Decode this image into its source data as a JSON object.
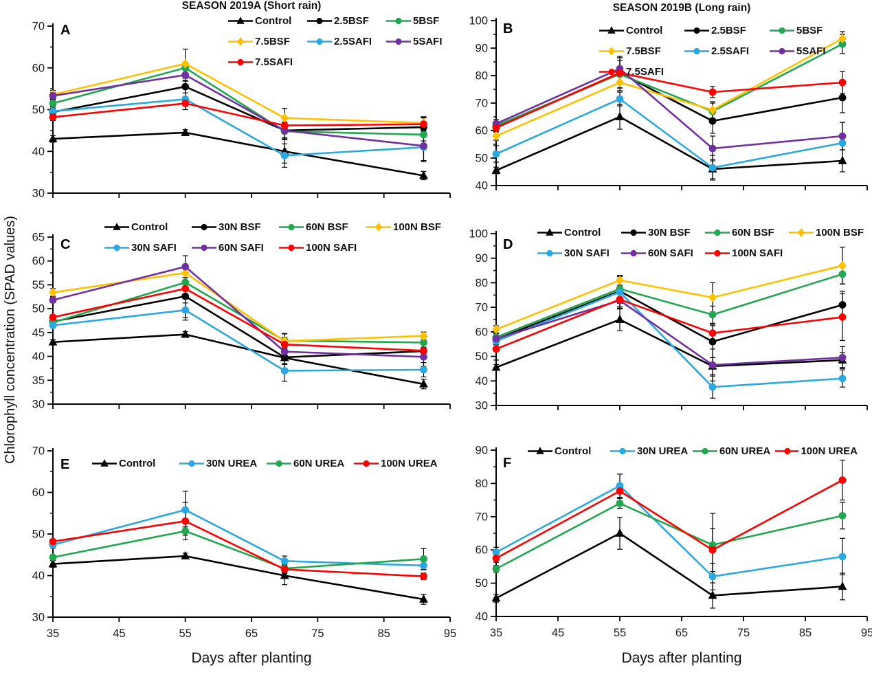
{
  "figure": {
    "y_axis_label": "Chlorophyll concentration (SPAD values)",
    "x_axis_label": "Days after planting",
    "col_titles": [
      "SEASON 2019A (Short rain)",
      "SEASON 2019B (Long rain)"
    ]
  },
  "palette": {
    "black": "#000000",
    "green": "#22A64F",
    "gold": "#FFC000",
    "cyan": "#2BA8E0",
    "purple": "#7030A0",
    "red": "#FE0000"
  },
  "chart_data": [
    {
      "panel": "A",
      "type": "line",
      "season_title": "SEASON 2019A (Short rain)",
      "x": [
        35,
        55,
        70,
        91
      ],
      "xticks": [
        35,
        45,
        55,
        65,
        75,
        85,
        95
      ],
      "yticks": [
        30,
        40,
        50,
        60,
        70
      ],
      "xlim": [
        35,
        95
      ],
      "ylim": [
        30,
        70
      ],
      "xlabel": "Days after planting",
      "ylabel": "Chlorophyll concentration (SPAD values)",
      "series": [
        {
          "label": "Control",
          "color": "black",
          "marker": "triangle",
          "values": [
            43.0,
            44.5,
            40.0,
            34.2
          ],
          "err": [
            0.8,
            0.7,
            2.8,
            1.0
          ]
        },
        {
          "label": "2.5BSF",
          "color": "black",
          "marker": "circle",
          "values": [
            49.4,
            55.5,
            45.0,
            45.8
          ],
          "err": [
            0.8,
            1.5,
            2.0,
            2.3
          ]
        },
        {
          "label": "5BSF",
          "color": "green",
          "marker": "circle",
          "values": [
            51.5,
            60.0,
            44.8,
            44.0
          ],
          "err": [
            0.8,
            1.2,
            1.5,
            1.5
          ]
        },
        {
          "label": "7.5BSF",
          "color": "gold",
          "marker": "diamond",
          "values": [
            53.6,
            61.0,
            48.0,
            46.8
          ],
          "err": [
            1.0,
            3.5,
            2.3,
            1.5
          ]
        },
        {
          "label": "2.5SAFI",
          "color": "cyan",
          "marker": "circle",
          "values": [
            49.6,
            52.5,
            39.0,
            41.0
          ],
          "err": [
            0.8,
            2.5,
            2.8,
            3.5
          ]
        },
        {
          "label": "5SAFI",
          "color": "purple",
          "marker": "circle",
          "values": [
            53.3,
            58.3,
            45.0,
            41.3
          ],
          "err": [
            0.8,
            1.5,
            2.0,
            3.5
          ]
        },
        {
          "label": "7.5SAFI",
          "color": "red",
          "marker": "circle",
          "values": [
            48.2,
            51.5,
            46.2,
            46.5
          ],
          "err": [
            0.8,
            1.5,
            1.5,
            1.5
          ]
        }
      ]
    },
    {
      "panel": "B",
      "type": "line",
      "season_title": "SEASON 2019B (Long rain)",
      "x": [
        35,
        55,
        70,
        91
      ],
      "xticks": [
        35,
        45,
        55,
        65,
        75,
        85,
        95
      ],
      "yticks": [
        40,
        50,
        60,
        70,
        80,
        90,
        100
      ],
      "xlim": [
        35,
        95
      ],
      "ylim": [
        40,
        100
      ],
      "xlabel": "Days after planting",
      "ylabel": "Chlorophyll concentration (SPAD values)",
      "series": [
        {
          "label": "Control",
          "color": "black",
          "marker": "triangle",
          "values": [
            45.5,
            65.0,
            46.0,
            49.0
          ],
          "err": [
            1.2,
            4.5,
            3.5,
            4.0
          ]
        },
        {
          "label": "2.5BSF",
          "color": "black",
          "marker": "circle",
          "values": [
            61.2,
            81.0,
            63.5,
            72.0
          ],
          "err": [
            1.5,
            5.5,
            4.5,
            5.5
          ]
        },
        {
          "label": "5BSF",
          "color": "green",
          "marker": "circle",
          "values": [
            61.8,
            80.5,
            67.0,
            91.5
          ],
          "err": [
            1.5,
            5.0,
            3.0,
            3.5
          ]
        },
        {
          "label": "7.5BSF",
          "color": "gold",
          "marker": "diamond",
          "values": [
            58.0,
            77.5,
            67.5,
            93.5
          ],
          "err": [
            1.5,
            3.0,
            3.0,
            2.5
          ]
        },
        {
          "label": "2.5SAFI",
          "color": "cyan",
          "marker": "circle",
          "values": [
            51.5,
            71.5,
            46.5,
            55.5
          ],
          "err": [
            3.0,
            2.5,
            4.5,
            7.5
          ]
        },
        {
          "label": "5SAFI",
          "color": "purple",
          "marker": "circle",
          "values": [
            62.5,
            82.5,
            53.5,
            58.0
          ],
          "err": [
            1.5,
            4.5,
            4.5,
            5.0
          ]
        },
        {
          "label": "7.5SAFI",
          "color": "red",
          "marker": "circle",
          "values": [
            61.0,
            81.0,
            74.0,
            77.5
          ],
          "err": [
            1.5,
            5.5,
            2.0,
            4.0
          ]
        }
      ]
    },
    {
      "panel": "C",
      "type": "line",
      "season_title": "SEASON 2019A (Short rain)",
      "x": [
        35,
        55,
        70,
        91
      ],
      "xticks": [
        35,
        45,
        55,
        65,
        75,
        85,
        95
      ],
      "yticks": [
        30,
        35,
        40,
        45,
        50,
        55,
        60,
        65
      ],
      "xlim": [
        35,
        95
      ],
      "ylim": [
        30,
        65
      ],
      "xlabel": "Days after planting",
      "ylabel": "Chlorophyll concentration (SPAD values)",
      "series": [
        {
          "label": "Control",
          "color": "black",
          "marker": "triangle",
          "values": [
            43.0,
            44.6,
            39.7,
            34.2
          ],
          "err": [
            0.5,
            0.6,
            1.2,
            1.0
          ]
        },
        {
          "label": "30N BSF",
          "color": "black",
          "marker": "circle",
          "values": [
            47.3,
            52.6,
            39.8,
            41.1
          ],
          "err": [
            0.5,
            5.0,
            1.5,
            1.5
          ]
        },
        {
          "label": "60N BSF",
          "color": "green",
          "marker": "circle",
          "values": [
            47.1,
            55.5,
            43.3,
            42.9
          ],
          "err": [
            0.5,
            1.0,
            1.5,
            1.0
          ]
        },
        {
          "label": "100N BSF",
          "color": "gold",
          "marker": "diamond",
          "values": [
            53.4,
            57.5,
            43.2,
            44.3
          ],
          "err": [
            0.8,
            1.0,
            1.5,
            0.8
          ]
        },
        {
          "label": "30N SAFI",
          "color": "cyan",
          "marker": "circle",
          "values": [
            46.5,
            49.7,
            37.0,
            37.2
          ],
          "err": [
            0.5,
            1.5,
            2.2,
            1.5
          ]
        },
        {
          "label": "60N SAFI",
          "color": "purple",
          "marker": "circle",
          "values": [
            51.8,
            58.8,
            41.0,
            39.9
          ],
          "err": [
            0.5,
            2.3,
            1.5,
            2.0
          ]
        },
        {
          "label": "100N SAFI",
          "color": "red",
          "marker": "circle",
          "values": [
            48.2,
            54.2,
            42.5,
            41.2
          ],
          "err": [
            0.5,
            1.5,
            1.5,
            1.5
          ]
        }
      ]
    },
    {
      "panel": "D",
      "type": "line",
      "season_title": "SEASON 2019B (Long rain)",
      "x": [
        35,
        55,
        70,
        91
      ],
      "xticks": [
        35,
        45,
        55,
        65,
        75,
        85,
        95
      ],
      "yticks": [
        30,
        40,
        50,
        60,
        70,
        80,
        90,
        100
      ],
      "xlim": [
        35,
        95
      ],
      "ylim": [
        30,
        100
      ],
      "xlabel": "Days after planting",
      "ylabel": "Chlorophyll concentration (SPAD values)",
      "series": [
        {
          "label": "Control",
          "color": "black",
          "marker": "triangle",
          "values": [
            45.5,
            65.0,
            46.0,
            48.5
          ],
          "err": [
            1.2,
            4.5,
            3.5,
            3.0
          ]
        },
        {
          "label": "30N BSF",
          "color": "black",
          "marker": "circle",
          "values": [
            57.0,
            76.6,
            56.0,
            71.0
          ],
          "err": [
            1.5,
            5.0,
            6.5,
            5.5
          ]
        },
        {
          "label": "60N BSF",
          "color": "green",
          "marker": "circle",
          "values": [
            57.8,
            77.5,
            67.0,
            83.5
          ],
          "err": [
            1.5,
            5.0,
            3.5,
            4.0
          ]
        },
        {
          "label": "100N BSF",
          "color": "gold",
          "marker": "diamond",
          "values": [
            61.0,
            81.0,
            74.0,
            87.0
          ],
          "err": [
            1.5,
            2.0,
            6.0,
            7.5
          ]
        },
        {
          "label": "30N SAFI",
          "color": "cyan",
          "marker": "circle",
          "values": [
            56.2,
            76.2,
            37.5,
            41.0
          ],
          "err": [
            1.5,
            6.5,
            4.5,
            3.5
          ]
        },
        {
          "label": "60N SAFI",
          "color": "purple",
          "marker": "circle",
          "values": [
            57.2,
            72.8,
            46.5,
            49.5
          ],
          "err": [
            1.5,
            3.5,
            6.5,
            4.5
          ]
        },
        {
          "label": "100N SAFI",
          "color": "red",
          "marker": "circle",
          "values": [
            53.0,
            73.2,
            59.5,
            66.0
          ],
          "err": [
            4.5,
            3.0,
            3.5,
            9.5
          ]
        }
      ]
    },
    {
      "panel": "E",
      "type": "line",
      "season_title": "SEASON 2019A (Short rain)",
      "x": [
        35,
        55,
        70,
        91
      ],
      "xticks": [
        35,
        45,
        55,
        65,
        75,
        85,
        95
      ],
      "yticks": [
        30,
        40,
        50,
        60,
        70
      ],
      "xlim": [
        35,
        95
      ],
      "ylim": [
        30,
        70
      ],
      "xlabel": "Days after planting",
      "ylabel": "Chlorophyll concentration (SPAD values)",
      "series": [
        {
          "label": "Control",
          "color": "black",
          "marker": "triangle",
          "values": [
            42.8,
            44.7,
            40.0,
            34.3
          ],
          "err": [
            0.8,
            0.7,
            2.2,
            1.2
          ]
        },
        {
          "label": "30N UREA",
          "color": "cyan",
          "marker": "circle",
          "values": [
            47.4,
            55.8,
            43.5,
            42.4
          ],
          "err": [
            0.8,
            4.5,
            1.2,
            1.0
          ]
        },
        {
          "label": "60N UREA",
          "color": "green",
          "marker": "circle",
          "values": [
            44.4,
            50.7,
            41.7,
            44.0
          ],
          "err": [
            0.5,
            1.0,
            1.0,
            2.5
          ]
        },
        {
          "label": "100N UREA",
          "color": "red",
          "marker": "circle",
          "values": [
            48.2,
            53.1,
            41.5,
            39.8
          ],
          "err": [
            0.5,
            4.5,
            1.0,
            0.8
          ]
        }
      ]
    },
    {
      "panel": "F",
      "type": "line",
      "season_title": "SEASON 2019B (Long rain)",
      "x": [
        35,
        55,
        70,
        91
      ],
      "xticks": [
        35,
        45,
        55,
        65,
        75,
        85,
        95
      ],
      "yticks": [
        40,
        50,
        60,
        70,
        80,
        90
      ],
      "xlim": [
        35,
        95
      ],
      "ylim": [
        40,
        90
      ],
      "xlabel": "Days after planting",
      "ylabel": "Chlorophyll concentration (SPAD values)",
      "series": [
        {
          "label": "Control",
          "color": "black",
          "marker": "triangle",
          "values": [
            45.5,
            65.0,
            46.3,
            49.0
          ],
          "err": [
            1.2,
            4.8,
            3.8,
            4.0
          ]
        },
        {
          "label": "30N UREA",
          "color": "cyan",
          "marker": "circle",
          "values": [
            59.3,
            79.3,
            52.0,
            58.0
          ],
          "err": [
            1.5,
            3.5,
            4.0,
            5.5
          ]
        },
        {
          "label": "60N UREA",
          "color": "green",
          "marker": "circle",
          "values": [
            54.3,
            74.0,
            61.5,
            70.3
          ],
          "err": [
            1.0,
            1.5,
            9.5,
            4.0
          ]
        },
        {
          "label": "100N UREA",
          "color": "red",
          "marker": "circle",
          "values": [
            57.5,
            77.7,
            60.0,
            81.0
          ],
          "err": [
            1.2,
            2.0,
            6.5,
            6.0
          ]
        }
      ]
    }
  ]
}
